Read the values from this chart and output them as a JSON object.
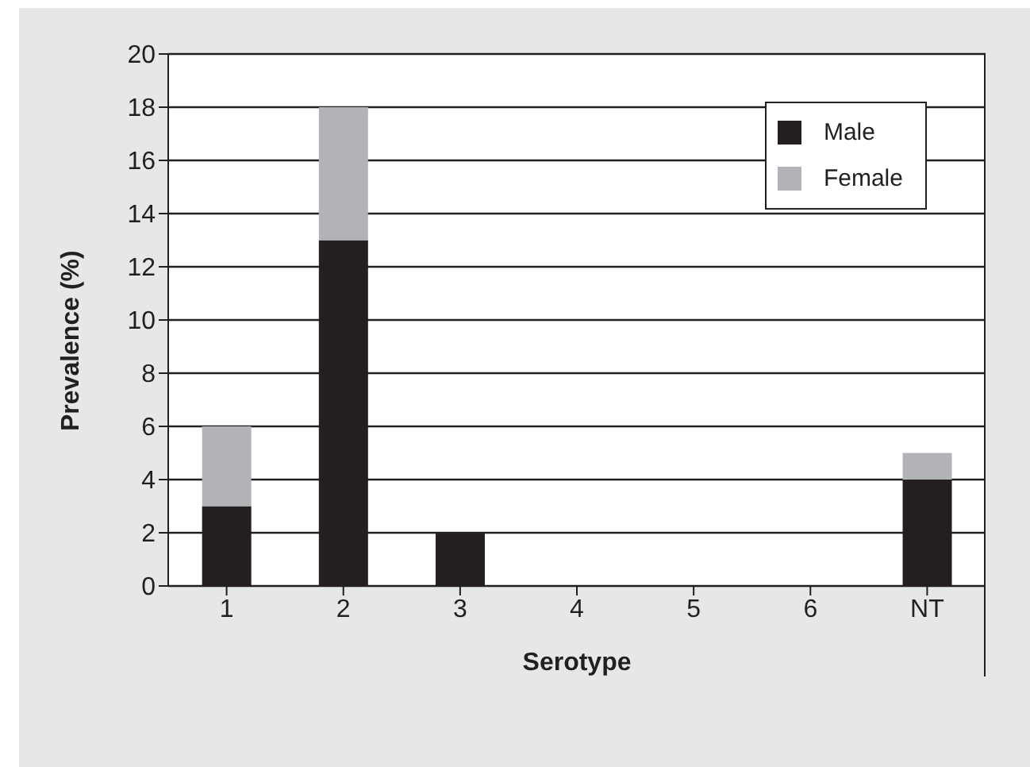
{
  "chart_data": {
    "type": "bar",
    "stacked": true,
    "xlabel": "Serotype",
    "ylabel": "Prevalence  (%)",
    "categories": [
      "1",
      "2",
      "3",
      "4",
      "5",
      "6",
      "NT"
    ],
    "series": [
      {
        "name": "Male",
        "color": "#231f20",
        "values": [
          3,
          13,
          2,
          0,
          0,
          0,
          4
        ]
      },
      {
        "name": "Female",
        "color": "#b1b3b6",
        "values": [
          3,
          5,
          0,
          0,
          0,
          0,
          1
        ]
      }
    ],
    "ylim": [
      0,
      20
    ],
    "yticks": [
      0,
      2,
      4,
      6,
      8,
      10,
      12,
      14,
      16,
      18,
      20
    ],
    "grid": "y",
    "legend": "top right"
  }
}
